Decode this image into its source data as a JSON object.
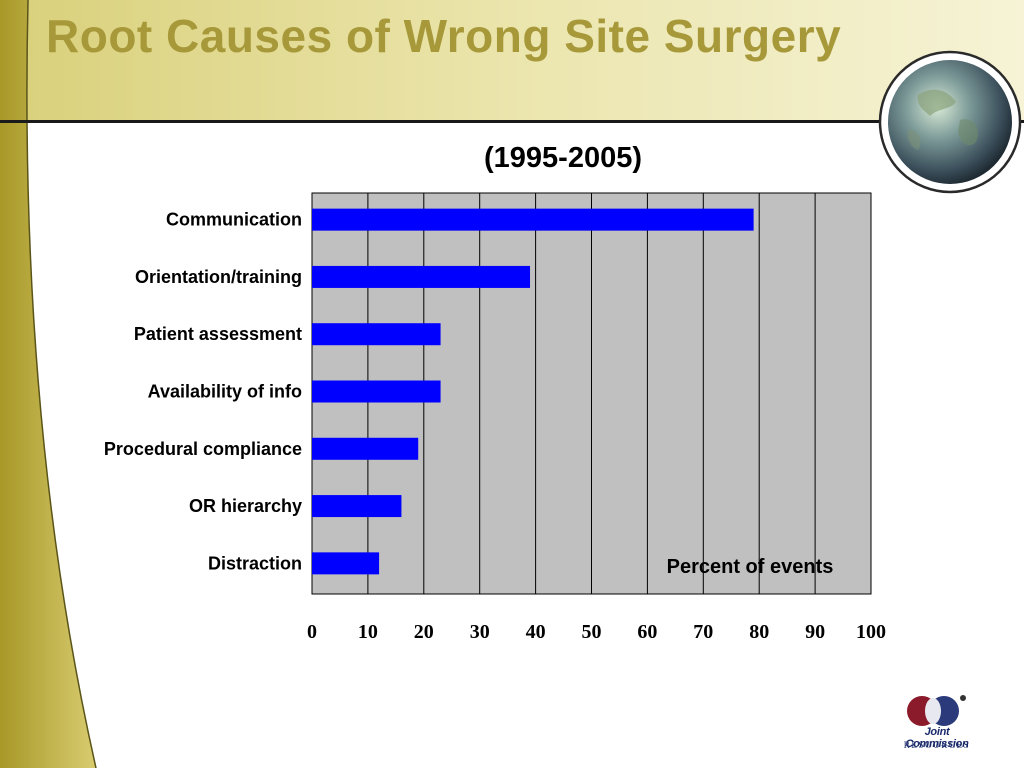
{
  "slide": {
    "title": "Root Causes of Wrong Site Surgery",
    "logo_line1": "Joint Commission",
    "logo_line2": "RESOURCES"
  },
  "colors": {
    "title": "#a7993a",
    "bar": "#0000ff",
    "plot_background": "#c0c0c0",
    "header_gradient_dark": "#d9d07a",
    "header_gradient_light": "#f4f0c8"
  },
  "chart_data": {
    "type": "bar",
    "orientation": "horizontal",
    "title": "(1995-2005)",
    "xlabel": "Percent of events",
    "ylabel": "",
    "categories": [
      "Communication",
      "Orientation/training",
      "Patient assessment",
      "Availability of info",
      "Procedural compliance",
      "OR hierarchy",
      "Distraction"
    ],
    "values": [
      79,
      39,
      23,
      23,
      19,
      16,
      12
    ],
    "xlim": [
      0,
      100
    ],
    "xticks": [
      "0",
      "10",
      "20",
      "30",
      "40",
      "50",
      "60",
      "70",
      "80",
      "90",
      "100"
    ],
    "grid": "vertical",
    "legend": "none"
  }
}
